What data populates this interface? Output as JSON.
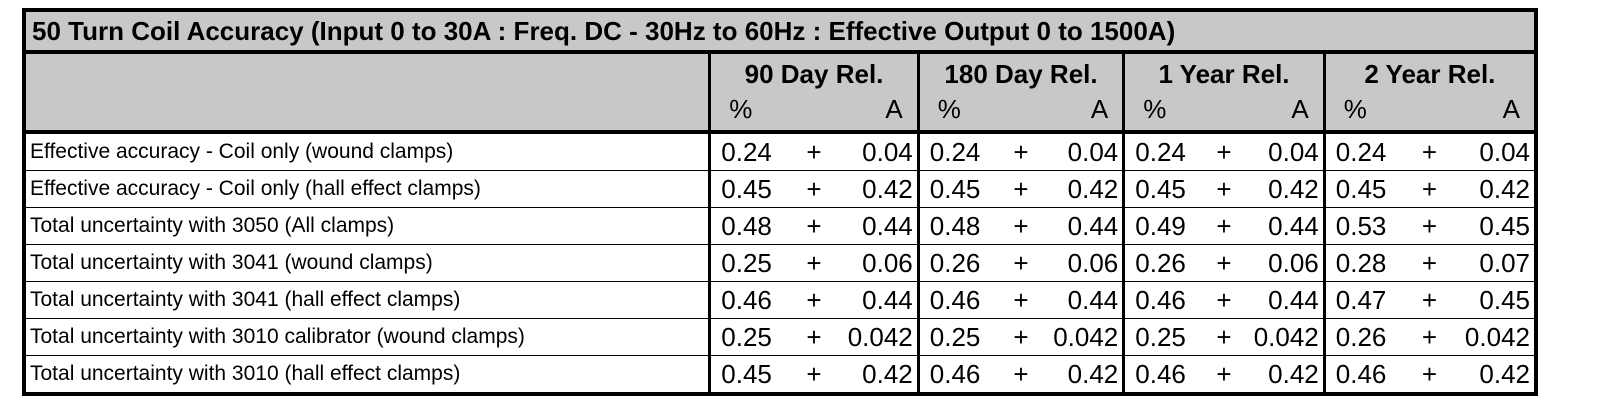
{
  "table": {
    "title": "50 Turn Coil Accuracy (Input 0 to 30A  : Freq. DC - 30Hz to 60Hz : Effective Output 0 to 1500A)",
    "periods": [
      "90 Day Rel.",
      "180 Day Rel.",
      "1 Year Rel.",
      "2 Year Rel."
    ],
    "unit_percent": "%",
    "unit_amps": "A",
    "separator": "+",
    "rows": [
      {
        "label": "Effective accuracy - Coil only (wound clamps)",
        "values": [
          [
            "0.24",
            "0.04"
          ],
          [
            "0.24",
            "0.04"
          ],
          [
            "0.24",
            "0.04"
          ],
          [
            "0.24",
            "0.04"
          ]
        ]
      },
      {
        "label": "Effective accuracy - Coil only (hall effect clamps)",
        "values": [
          [
            "0.45",
            "0.42"
          ],
          [
            "0.45",
            "0.42"
          ],
          [
            "0.45",
            "0.42"
          ],
          [
            "0.45",
            "0.42"
          ]
        ]
      },
      {
        "label": "Total uncertainty with 3050 (All clamps)",
        "values": [
          [
            "0.48",
            "0.44"
          ],
          [
            "0.48",
            "0.44"
          ],
          [
            "0.49",
            "0.44"
          ],
          [
            "0.53",
            "0.45"
          ]
        ]
      },
      {
        "label": "Total uncertainty with 3041 (wound clamps)",
        "values": [
          [
            "0.25",
            "0.06"
          ],
          [
            "0.26",
            "0.06"
          ],
          [
            "0.26",
            "0.06"
          ],
          [
            "0.28",
            "0.07"
          ]
        ]
      },
      {
        "label": "Total uncertainty with 3041 (hall effect clamps)",
        "values": [
          [
            "0.46",
            "0.44"
          ],
          [
            "0.46",
            "0.44"
          ],
          [
            "0.46",
            "0.44"
          ],
          [
            "0.47",
            "0.45"
          ]
        ]
      },
      {
        "label": "Total uncertainty with 3010 calibrator (wound clamps)",
        "values": [
          [
            "0.25",
            "0.042"
          ],
          [
            "0.25",
            "0.042"
          ],
          [
            "0.25",
            "0.042"
          ],
          [
            "0.26",
            "0.042"
          ]
        ]
      },
      {
        "label": "Total uncertainty with 3010 (hall effect clamps)",
        "values": [
          [
            "0.45",
            "0.42"
          ],
          [
            "0.46",
            "0.42"
          ],
          [
            "0.46",
            "0.42"
          ],
          [
            "0.46",
            "0.42"
          ]
        ]
      }
    ]
  }
}
